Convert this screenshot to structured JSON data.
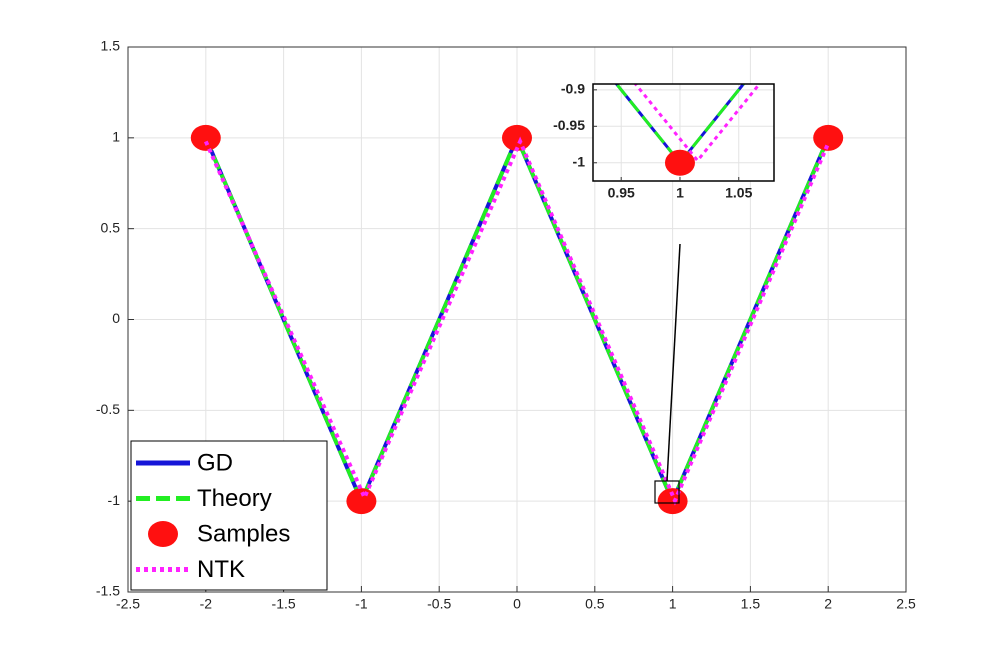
{
  "chart_data": {
    "type": "line",
    "xlim": [
      -2.5,
      2.5
    ],
    "ylim": [
      -1.5,
      1.5
    ],
    "xticks": [
      -2.5,
      -2,
      -1.5,
      -1,
      -0.5,
      0,
      0.5,
      1,
      1.5,
      2,
      2.5
    ],
    "yticks": [
      -1.5,
      -1,
      -0.5,
      0,
      0.5,
      1,
      1.5
    ],
    "grid": true,
    "legend": "lower left",
    "series": [
      {
        "name": "GD",
        "style": "solid",
        "color": "#1515d8",
        "x": [
          -2,
          -1,
          0,
          1,
          2
        ],
        "values": [
          1,
          -1,
          1,
          -1,
          1
        ]
      },
      {
        "name": "Theory",
        "style": "dashed",
        "color": "#22ee22",
        "x": [
          -2,
          -1,
          0,
          1,
          2
        ],
        "values": [
          1,
          -1,
          1,
          -1,
          1
        ]
      },
      {
        "name": "Samples",
        "style": "marker",
        "color": "#ff1010",
        "x": [
          -2,
          -1,
          0,
          1,
          2
        ],
        "values": [
          1,
          -1,
          1,
          -1,
          1
        ]
      },
      {
        "name": "NTK",
        "style": "dotted",
        "color": "#ff22ff",
        "x": [
          -2,
          -0.98,
          0.02,
          1.015,
          2
        ],
        "values": [
          0.98,
          -0.98,
          0.98,
          -0.997,
          0.97
        ]
      }
    ],
    "inset": {
      "xlim": [
        0.926,
        1.08
      ],
      "ylim": [
        -1.025,
        -0.892
      ],
      "xticks": [
        0.95,
        1,
        1.05
      ],
      "yticks": [
        -0.9,
        -0.95,
        -1
      ]
    }
  }
}
